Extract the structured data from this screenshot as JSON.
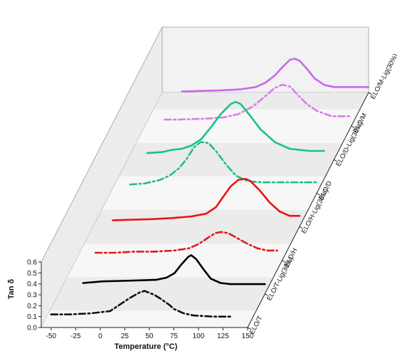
{
  "chart_data": {
    "type": "line",
    "layout": "3d-waterfall",
    "xlabel": "Temperature (°C)",
    "ylabel": "Tan δ",
    "xlim": [
      -60,
      150
    ],
    "ylim": [
      0.0,
      0.6
    ],
    "xticks": [
      -50,
      -25,
      0,
      25,
      50,
      75,
      100,
      125,
      150
    ],
    "yticks": [
      0.0,
      0.1,
      0.2,
      0.3,
      0.4,
      0.5,
      0.6
    ],
    "xtick_labels": [
      "-50",
      "-25",
      "0",
      "25",
      "50",
      "75",
      "100",
      "125",
      "150"
    ],
    "ytick_labels": [
      "0.0",
      "0.1",
      "0.2",
      "0.3",
      "0.4",
      "0.5",
      "0.6"
    ],
    "grid": false,
    "series": [
      {
        "name": "ELO/T",
        "color": "#111111",
        "style": "dashdot",
        "x": [
          -50,
          -30,
          -10,
          10,
          20,
          30,
          40,
          45,
          55,
          62,
          70,
          75,
          85,
          95,
          105,
          115,
          125,
          135
        ],
        "y": [
          0.12,
          0.12,
          0.13,
          0.15,
          0.21,
          0.27,
          0.32,
          0.335,
          0.3,
          0.26,
          0.21,
          0.17,
          0.13,
          0.11,
          0.105,
          0.1,
          0.1,
          0.1
        ]
      },
      {
        "name": "ELO/T-Lig(30%)",
        "color": "#000000",
        "style": "solid",
        "x": [
          -35,
          -15,
          5,
          25,
          40,
          50,
          58,
          65,
          72,
          75,
          80,
          88,
          95,
          105,
          115,
          130,
          150
        ],
        "y": [
          0.1,
          0.115,
          0.12,
          0.125,
          0.13,
          0.15,
          0.19,
          0.27,
          0.34,
          0.355,
          0.32,
          0.22,
          0.14,
          0.1,
          0.09,
          0.09,
          0.09
        ]
      },
      {
        "name": "ELO/H",
        "color": "#e01b1b",
        "style": "dashdot",
        "x": [
          -40,
          -20,
          0,
          20,
          40,
          55,
          65,
          75,
          82,
          88,
          95,
          105,
          115,
          125,
          135,
          145
        ],
        "y": [
          0.07,
          0.07,
          0.08,
          0.08,
          0.09,
          0.11,
          0.15,
          0.21,
          0.25,
          0.26,
          0.25,
          0.2,
          0.15,
          0.11,
          0.09,
          0.09
        ]
      },
      {
        "name": "ELO/H-Lig(30%)",
        "color": "#ee1111",
        "style": "solid",
        "x": [
          -40,
          -20,
          0,
          20,
          40,
          55,
          65,
          72,
          80,
          88,
          95,
          100,
          110,
          120,
          130,
          140,
          150
        ],
        "y": [
          0.06,
          0.065,
          0.07,
          0.08,
          0.095,
          0.12,
          0.18,
          0.27,
          0.37,
          0.43,
          0.44,
          0.42,
          0.33,
          0.22,
          0.14,
          0.1,
          0.1
        ]
      },
      {
        "name": "ELO/D",
        "color": "#1fbf85",
        "style": "dashdot",
        "x": [
          -40,
          -25,
          -10,
          0,
          10,
          18,
          25,
          32,
          40,
          48,
          58,
          68,
          80,
          95,
          115,
          135,
          150
        ],
        "y": [
          0.08,
          0.09,
          0.12,
          0.16,
          0.23,
          0.32,
          0.42,
          0.47,
          0.46,
          0.38,
          0.26,
          0.16,
          0.11,
          0.1,
          0.1,
          0.1,
          0.1
        ]
      },
      {
        "name": "ELO/D-Lig(30%)",
        "color": "#17c387",
        "style": "solid",
        "x": [
          -40,
          -25,
          -15,
          -5,
          5,
          15,
          25,
          35,
          45,
          50,
          55,
          65,
          75,
          90,
          105,
          125,
          140
        ],
        "y": [
          0.06,
          0.07,
          0.09,
          0.1,
          0.13,
          0.19,
          0.3,
          0.42,
          0.51,
          0.53,
          0.51,
          0.4,
          0.28,
          0.16,
          0.1,
          0.08,
          0.08
        ]
      },
      {
        "name": "ELO/M",
        "color": "#d77ee8",
        "style": "dashdot",
        "x": [
          -40,
          -25,
          -10,
          5,
          20,
          35,
          50,
          62,
          72,
          80,
          88,
          95,
          105,
          115,
          130,
          150
        ],
        "y": [
          0.06,
          0.06,
          0.065,
          0.07,
          0.08,
          0.11,
          0.18,
          0.27,
          0.35,
          0.38,
          0.36,
          0.29,
          0.2,
          0.14,
          0.09,
          0.09
        ]
      },
      {
        "name": "ELO/M-Lig(30%)",
        "color": "#cc66ee",
        "style": "solid",
        "x": [
          -40,
          -20,
          0,
          20,
          35,
          45,
          55,
          62,
          70,
          75,
          80,
          88,
          95,
          105,
          115,
          130,
          150
        ],
        "y": [
          0.01,
          0.015,
          0.02,
          0.03,
          0.05,
          0.09,
          0.16,
          0.23,
          0.3,
          0.31,
          0.29,
          0.21,
          0.13,
          0.07,
          0.05,
          0.05,
          0.05
        ]
      }
    ]
  }
}
